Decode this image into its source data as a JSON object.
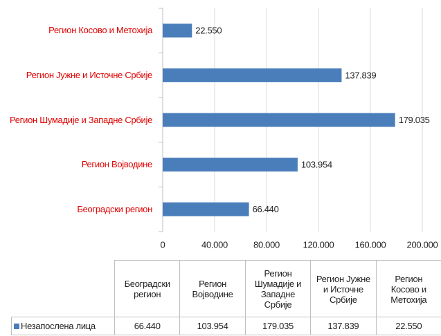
{
  "chart_data": {
    "type": "bar",
    "orientation": "horizontal",
    "categories": [
      "Београдски регион",
      "Регион Војводине",
      "Регион Шумадије и Западне Србије",
      "Регион Јужне и Источне Србије",
      "Регион Косово и Метохија"
    ],
    "series": [
      {
        "name": "Незапослена лица",
        "color": "#4a7ebb",
        "values": [
          66440,
          103954,
          179035,
          137839,
          22550
        ],
        "value_labels": [
          "66.440",
          "103.954",
          "179.035",
          "137.839",
          "22.550"
        ]
      }
    ],
    "category_label_color": "#e00000",
    "xlim": [
      0,
      200000
    ],
    "xticks": [
      0,
      {
        "value": 40000,
        "label": "40.000"
      },
      {
        "value": 80000,
        "label": "80.000"
      },
      {
        "value": 120000,
        "label": "120.000"
      },
      {
        "value": 160000,
        "label": "160.000"
      },
      {
        "value": 200000,
        "label": "200.000"
      }
    ],
    "grid": true
  }
}
